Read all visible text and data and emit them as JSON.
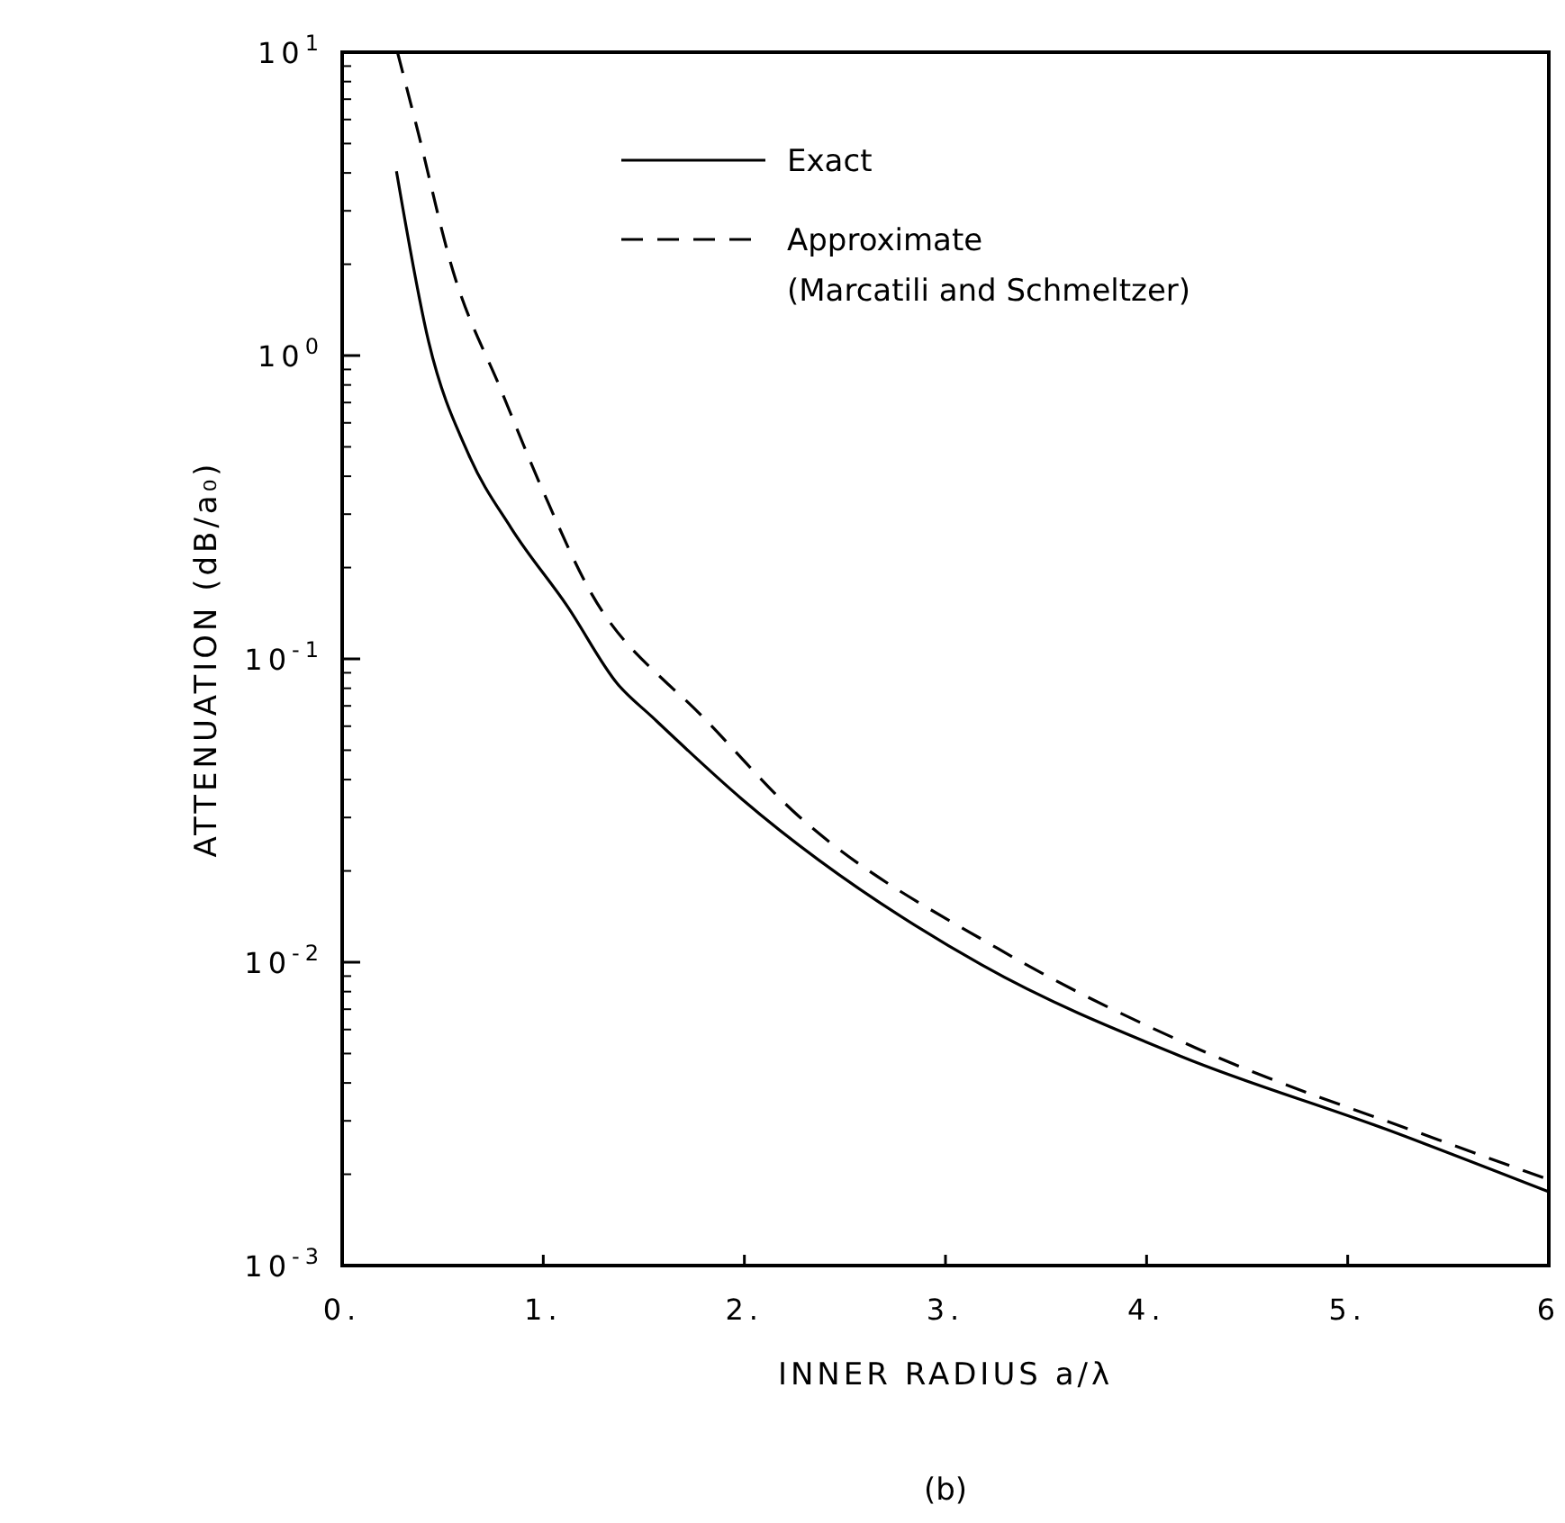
{
  "chart_data": {
    "type": "line",
    "xlabel": "INNER RADIUS a/λ",
    "ylabel": "ATTENUATION (dB/a₀)",
    "annotations": [
      "(b)"
    ],
    "log": "y",
    "xlim": [
      0,
      6
    ],
    "ylim": [
      0.001,
      10
    ],
    "xticks": [
      {
        "value": 0,
        "label": "0."
      },
      {
        "value": 1,
        "label": "1."
      },
      {
        "value": 2,
        "label": "2."
      },
      {
        "value": 3,
        "label": "3."
      },
      {
        "value": 4,
        "label": "4."
      },
      {
        "value": 5,
        "label": "5."
      },
      {
        "value": 6,
        "label": "6"
      }
    ],
    "yticks": [
      {
        "value": 0.001,
        "label": "10$^{-3}$"
      },
      {
        "value": 0.01,
        "label": "10$^{-2}$"
      },
      {
        "value": 0.1,
        "label": "10$^{-1}$"
      },
      {
        "value": 1,
        "label": "10$^{0}$"
      },
      {
        "value": 10,
        "label": "10$^{1}$"
      }
    ],
    "grid": false,
    "legend": "top right",
    "marker": "none",
    "series": [
      {
        "name": "Exact",
        "color": "#000000",
        "line_style": "solid",
        "x": [
          0.27,
          0.43,
          0.63,
          0.84,
          1.12,
          1.37,
          1.54,
          1.99,
          3.18,
          4.17,
          5.2,
          6.0
        ],
        "values": [
          4.05,
          1.11,
          0.47,
          0.27,
          0.149,
          0.0826,
          0.0645,
          0.0344,
          0.0098,
          0.0049,
          0.0028,
          0.00175
        ]
      },
      {
        "name": "Approximate\n(Marcatili and Schmeltzer)",
        "color": "#000000",
        "line_style": "dashed",
        "x": [
          0.275,
          0.37,
          0.55,
          0.79,
          1.0,
          1.24,
          1.62,
          1.69,
          2.27,
          3.26,
          4.25,
          5.45,
          6.0
        ],
        "values": [
          10,
          5.7,
          1.91,
          0.77,
          0.356,
          0.164,
          0.0826,
          0.075,
          0.0303,
          0.0111,
          0.0052,
          0.0026,
          0.00192
        ]
      }
    ]
  }
}
